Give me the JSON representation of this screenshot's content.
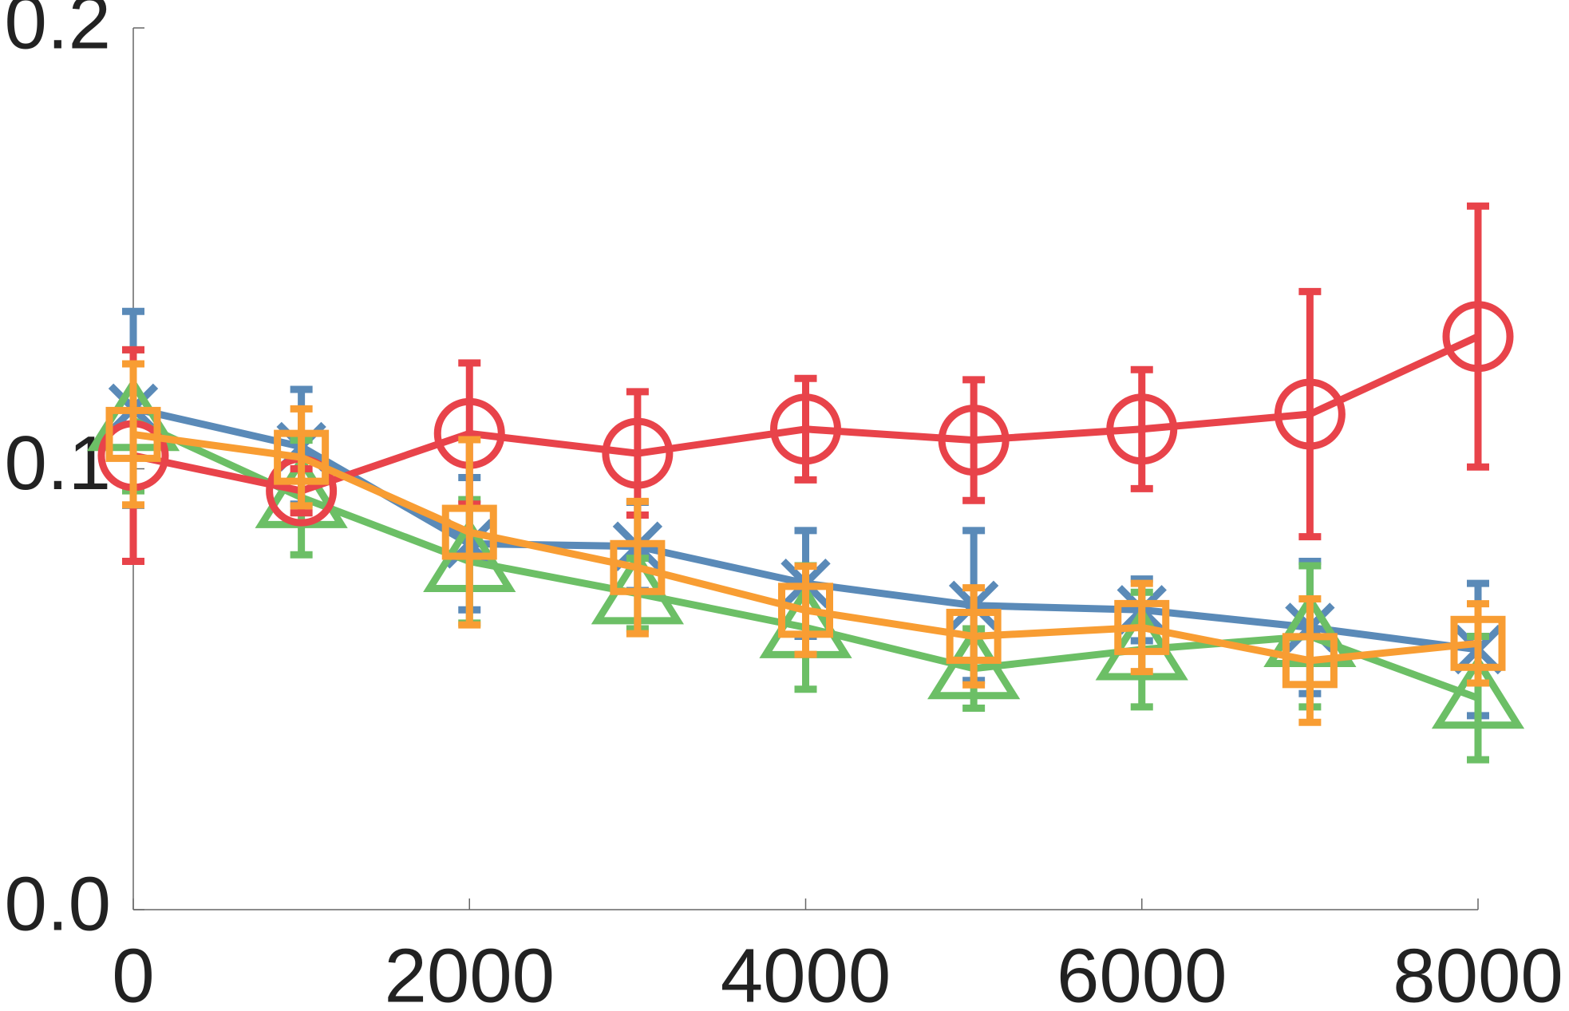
{
  "chart_data": {
    "type": "line",
    "x": [
      0,
      1000,
      2000,
      3000,
      4000,
      5000,
      6000,
      7000,
      8000
    ],
    "xlim": [
      0,
      8000
    ],
    "xticks": [
      0,
      2000,
      4000,
      6000,
      8000
    ],
    "ylim": [
      0,
      0.2
    ],
    "yticks": [
      {
        "value": 0,
        "label": "0.0"
      },
      0.1,
      0.2
    ],
    "series": [
      {
        "color": "#5a8ab8",
        "marker": "x",
        "values": [
          0.1137,
          0.105,
          0.083,
          0.0824,
          0.074,
          0.069,
          0.068,
          0.064,
          0.059
        ],
        "errors": [
          0.022,
          0.013,
          0.015,
          0.01,
          0.012,
          0.017,
          0.007,
          0.015,
          0.015
        ]
      },
      {
        "color": "#6cbf66",
        "marker": "triangle",
        "values": [
          0.111,
          0.0935,
          0.079,
          0.0717,
          0.064,
          0.0547,
          0.059,
          0.062,
          0.048
        ],
        "errors": [
          0.016,
          0.013,
          0.014,
          0.008,
          0.014,
          0.009,
          0.013,
          0.016,
          0.014
        ]
      },
      {
        "color": "#e8434a",
        "marker": "circle",
        "values": [
          0.103,
          0.095,
          0.108,
          0.1035,
          0.109,
          0.1065,
          0.109,
          0.1124,
          0.13
        ],
        "errors": [
          0.024,
          0.005,
          0.016,
          0.014,
          0.0115,
          0.0137,
          0.0135,
          0.0278,
          0.0296
        ]
      },
      {
        "color": "#f89d33",
        "marker": "square",
        "values": [
          0.1078,
          0.1026,
          0.0856,
          0.0776,
          0.0679,
          0.062,
          0.064,
          0.0565,
          0.0604
        ],
        "errors": [
          0.016,
          0.011,
          0.021,
          0.015,
          0.01,
          0.011,
          0.01,
          0.014,
          0.009
        ]
      }
    ]
  }
}
